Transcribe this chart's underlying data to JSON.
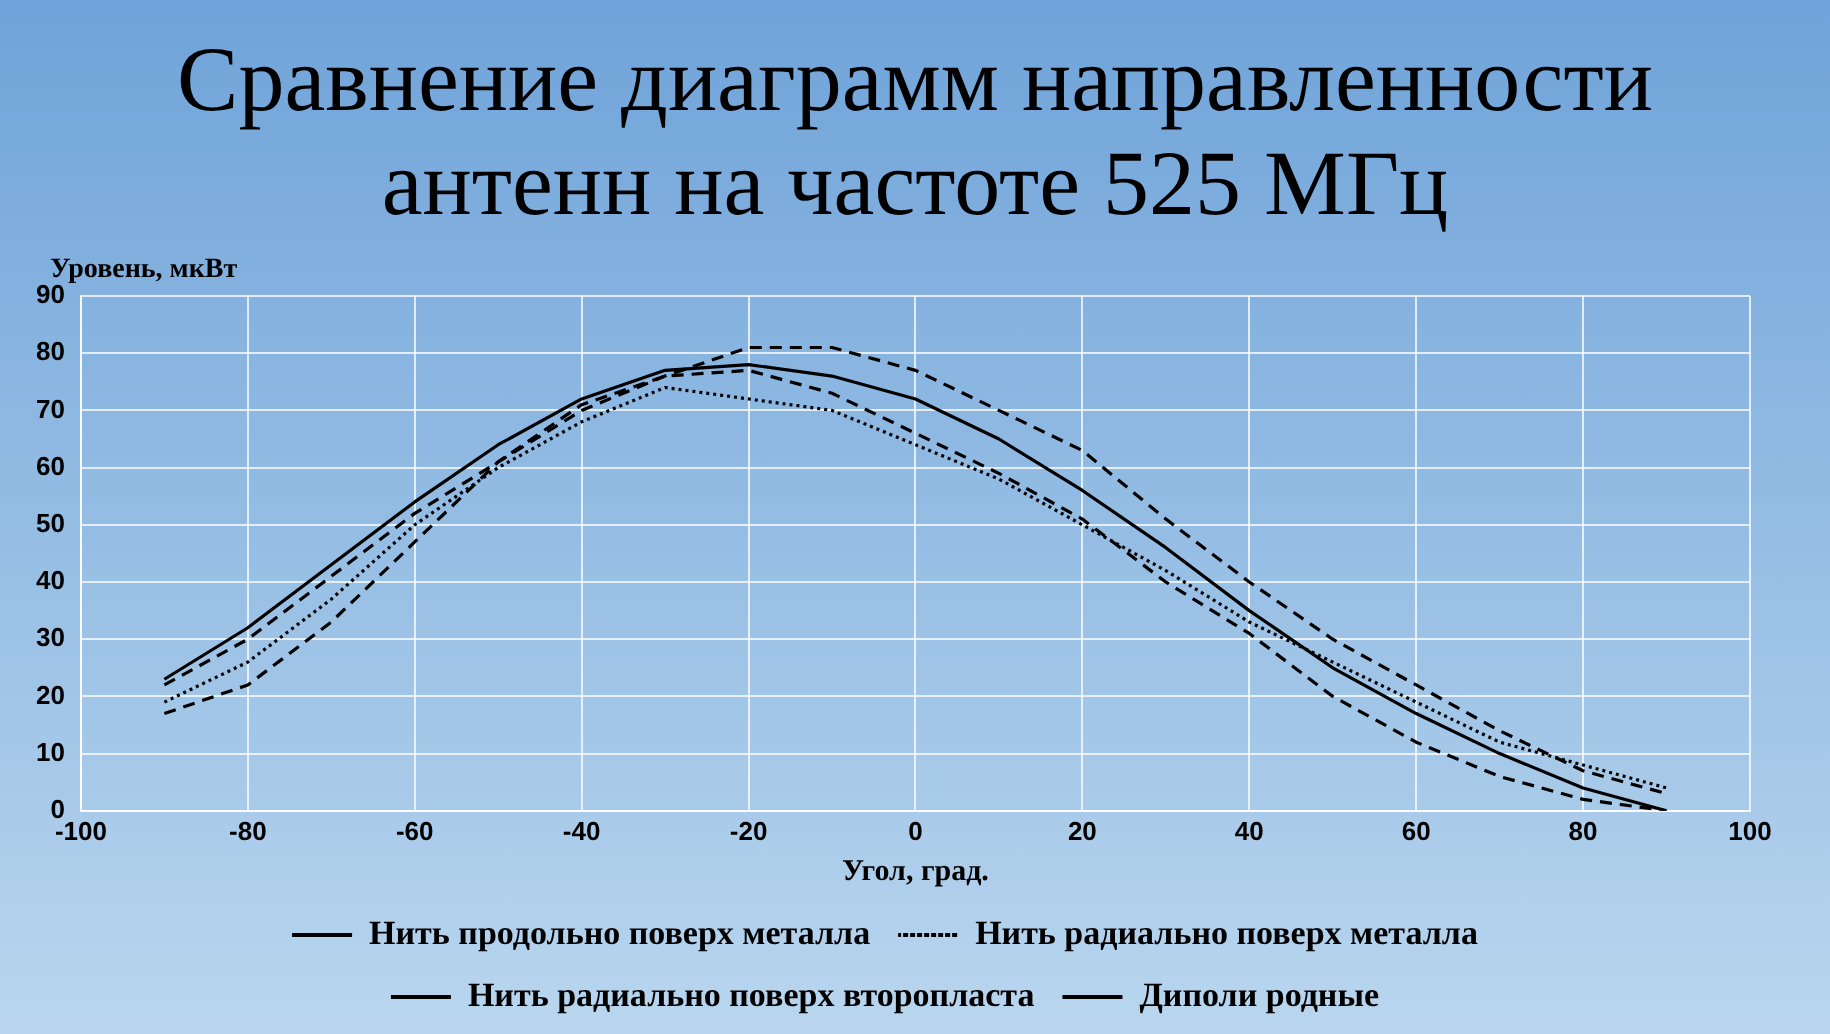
{
  "chart_data": {
    "type": "line",
    "title": "Сравнение диаграмм направленности антенн на частоте 525 МГц",
    "xlabel": "Угол, град.",
    "ylabel": "Уровень, мкВт",
    "x": [
      -90,
      -80,
      -70,
      -60,
      -50,
      -40,
      -30,
      -20,
      -10,
      0,
      10,
      20,
      30,
      40,
      50,
      60,
      70,
      80,
      90
    ],
    "series": [
      {
        "name": "Нить продольно поверх металла",
        "color": "#000000",
        "line_style": "solid",
        "values": [
          23,
          32,
          43,
          54,
          64,
          72,
          77,
          78,
          76,
          72,
          65,
          56,
          46,
          35,
          25,
          17,
          10,
          4,
          0
        ]
      },
      {
        "name": "Нить радиально поверх металла",
        "color": "#000000",
        "line_style": "dotted",
        "values": [
          19,
          26,
          37,
          50,
          60,
          68,
          74,
          72,
          70,
          64,
          58,
          50,
          42,
          33,
          26,
          19,
          12,
          8,
          4
        ]
      },
      {
        "name": "Нить радиально поверх второпласта",
        "color": "#000000",
        "line_style": "dashed",
        "values": [
          22,
          30,
          41,
          52,
          61,
          70,
          76,
          81,
          81,
          77,
          70,
          63,
          51,
          40,
          30,
          22,
          14,
          7,
          3
        ]
      },
      {
        "name": "Диполи родные",
        "color": "#000000",
        "line_style": "dashed",
        "values": [
          17,
          22,
          33,
          47,
          61,
          71,
          76,
          77,
          73,
          66,
          59,
          51,
          40,
          31,
          20,
          12,
          6,
          2,
          0
        ]
      }
    ],
    "xlim": [
      -100,
      100
    ],
    "xticks": [
      -100,
      -80,
      -60,
      -40,
      -20,
      0,
      20,
      40,
      60,
      80,
      100
    ],
    "ylim": [
      0,
      90
    ],
    "yticks": [
      0,
      10,
      20,
      30,
      40,
      50,
      60,
      70,
      80,
      90
    ],
    "grid": true,
    "legend": "bottom",
    "marker": "none"
  }
}
